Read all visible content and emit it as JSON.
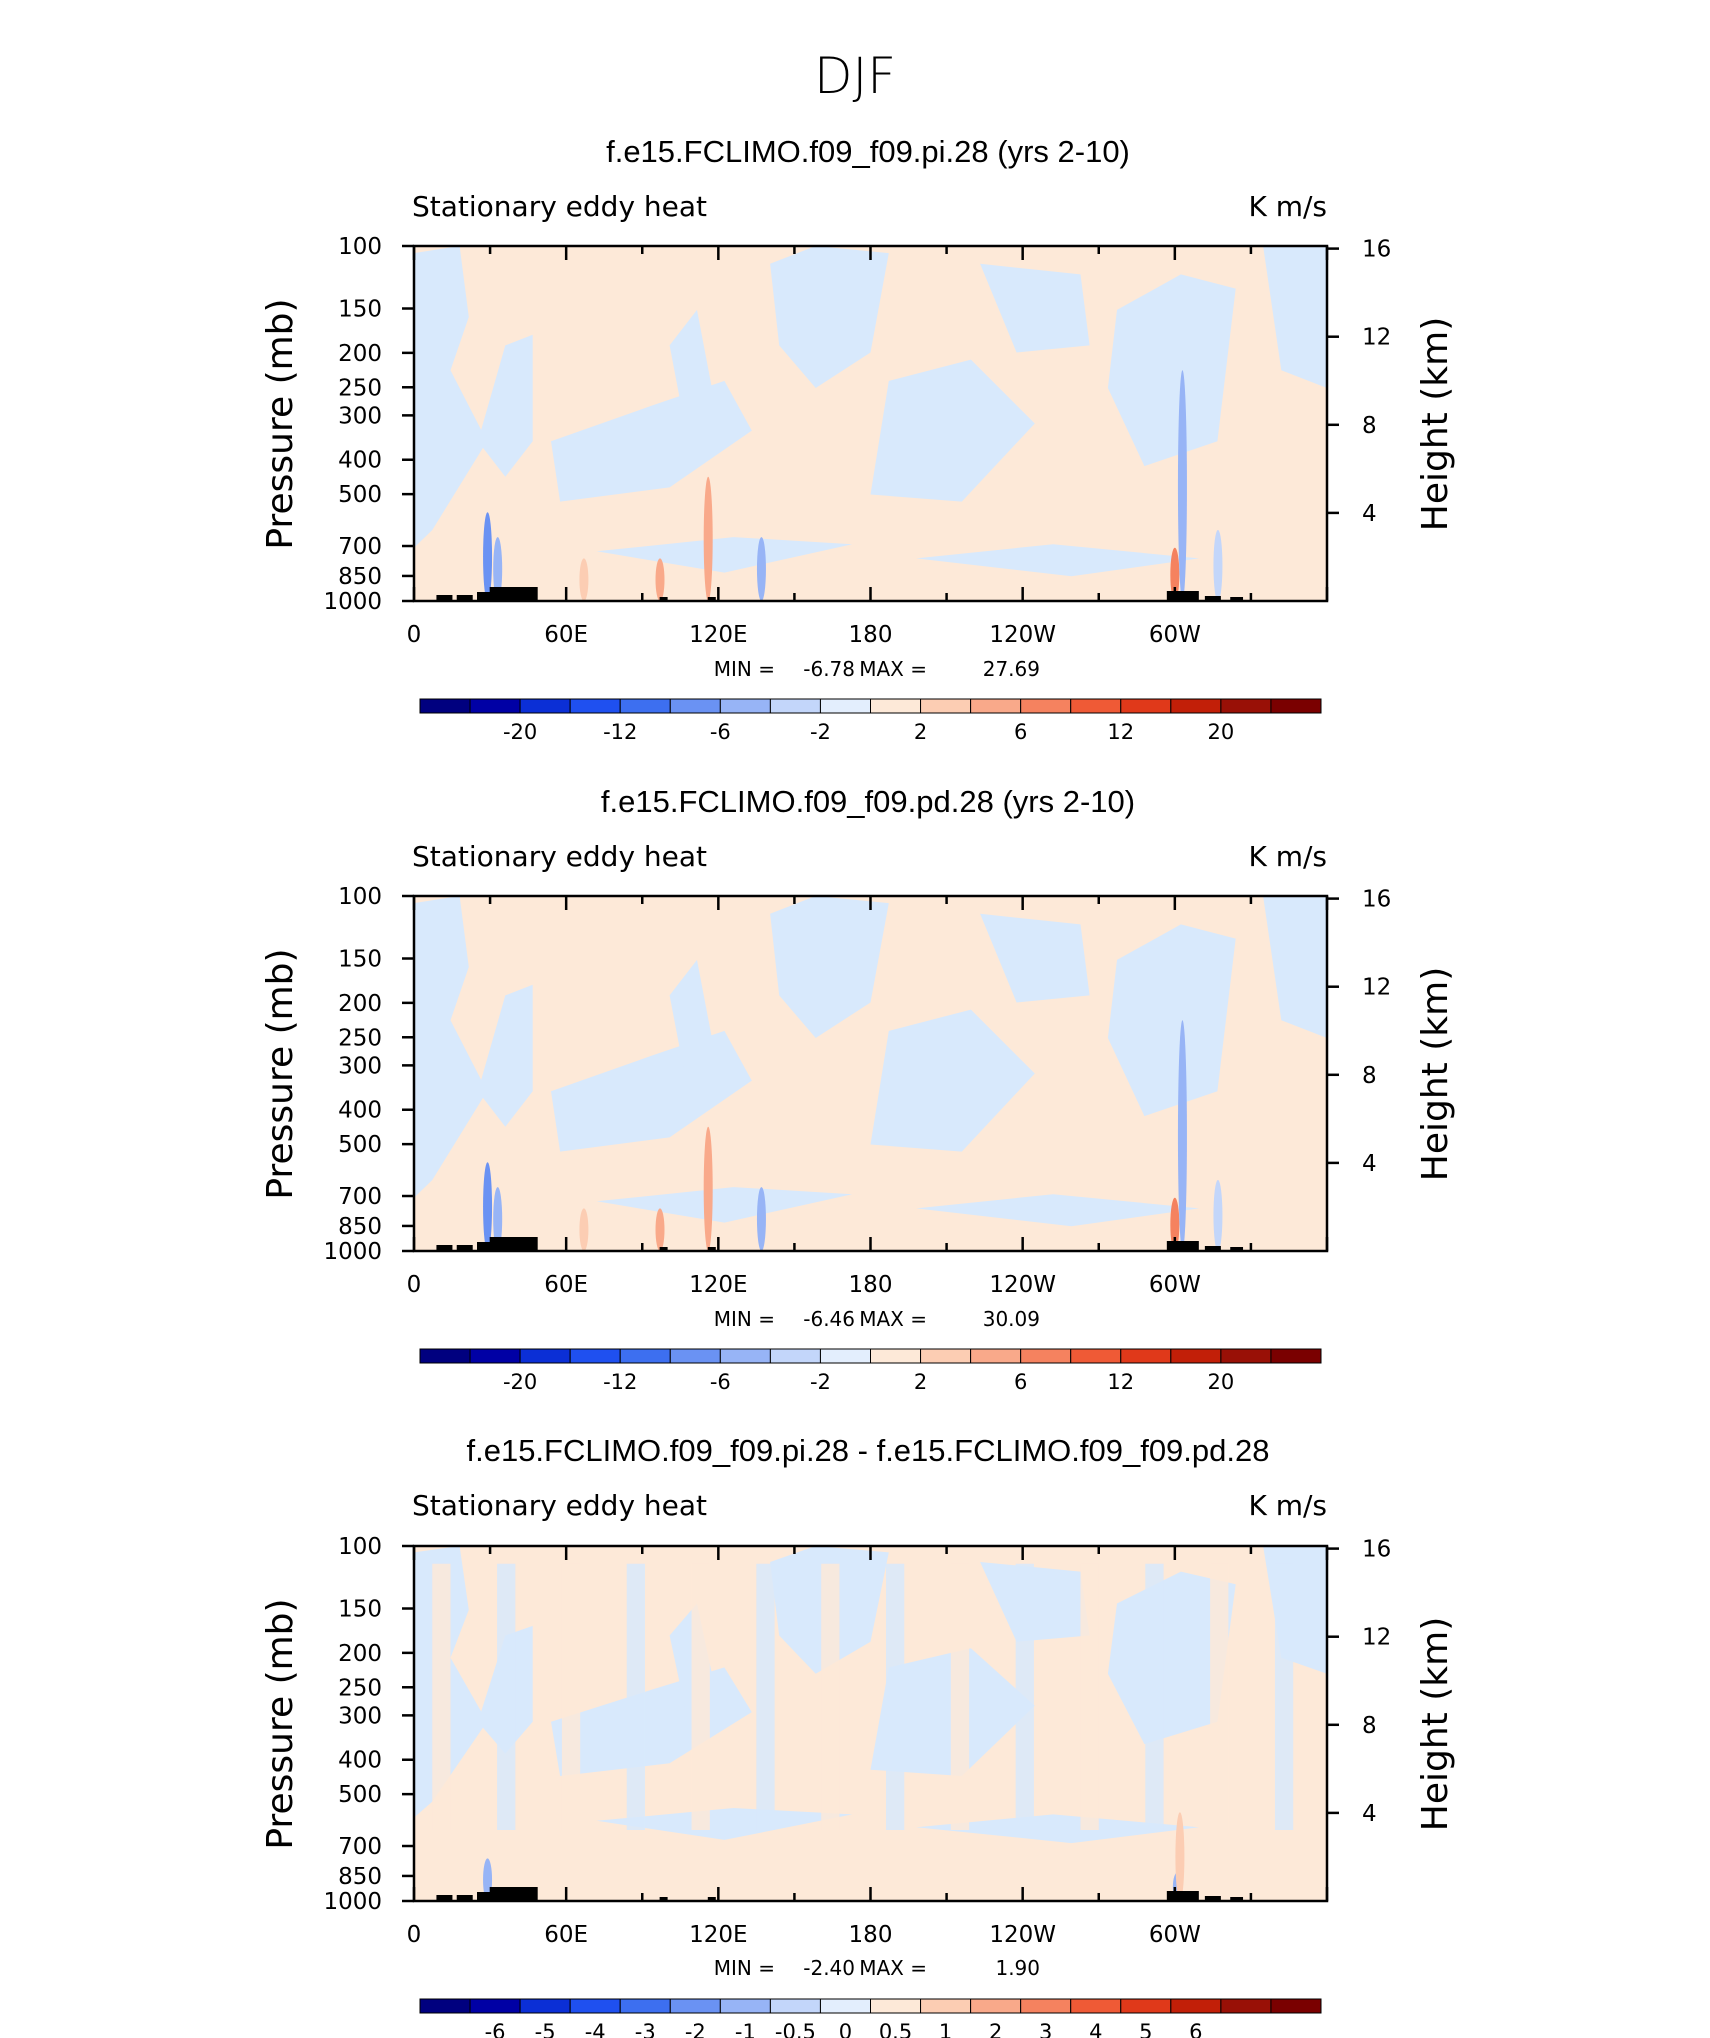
{
  "figure": {
    "title": "DJF"
  },
  "colors": {
    "scale": [
      "#00007f",
      "#0000a5",
      "#0b2fd6",
      "#1f50f0",
      "#3d6ff0",
      "#6a92f3",
      "#97b4f6",
      "#c3d6fa",
      "#e3eefd",
      "#fde9d8",
      "#fccdb3",
      "#f9a98a",
      "#f5825f",
      "#ef5a36",
      "#e0391a",
      "#c21f08",
      "#991006",
      "#7a0000"
    ],
    "pos_bg": "#fde9d8",
    "neg_bg": "#d8e9fc",
    "terrain": "#000000"
  },
  "chart_data": [
    {
      "type": "heatmap",
      "title": "f.e15.FCLIMO.f09_f09.pi.28 (yrs 2-10)",
      "left_string": "Stationary eddy heat",
      "right_string": "K m/s",
      "ylabel": "Pressure (mb)",
      "ylabel_right": "Height (km)",
      "x_ticks": [
        "0",
        "60E",
        "120E",
        "180",
        "120W",
        "60W"
      ],
      "y_ticks": [
        "100",
        "150",
        "200",
        "250",
        "300",
        "400",
        "500",
        "700",
        "850",
        "1000"
      ],
      "y_right_ticks": [
        "16",
        "12",
        "8",
        "4"
      ],
      "min_label": "MIN =",
      "min_value": "-6.78",
      "max_label": "MAX =",
      "max_value": "27.69",
      "colorbar_labels": [
        "-20",
        "-12",
        "-6",
        "-2",
        "2",
        "6",
        "12",
        "20"
      ]
    },
    {
      "type": "heatmap",
      "title": "f.e15.FCLIMO.f09_f09.pd.28 (yrs 2-10)",
      "left_string": "Stationary eddy heat",
      "right_string": "K m/s",
      "ylabel": "Pressure (mb)",
      "ylabel_right": "Height (km)",
      "x_ticks": [
        "0",
        "60E",
        "120E",
        "180",
        "120W",
        "60W"
      ],
      "y_ticks": [
        "100",
        "150",
        "200",
        "250",
        "300",
        "400",
        "500",
        "700",
        "850",
        "1000"
      ],
      "y_right_ticks": [
        "16",
        "12",
        "8",
        "4"
      ],
      "min_label": "MIN =",
      "min_value": "-6.46",
      "max_label": "MAX =",
      "max_value": "30.09",
      "colorbar_labels": [
        "-20",
        "-12",
        "-6",
        "-2",
        "2",
        "6",
        "12",
        "20"
      ]
    },
    {
      "type": "heatmap",
      "title": "f.e15.FCLIMO.f09_f09.pi.28 - f.e15.FCLIMO.f09_f09.pd.28",
      "left_string": "Stationary eddy heat",
      "right_string": "K m/s",
      "ylabel": "Pressure (mb)",
      "ylabel_right": "Height (km)",
      "x_ticks": [
        "0",
        "60E",
        "120E",
        "180",
        "120W",
        "60W"
      ],
      "y_ticks": [
        "100",
        "150",
        "200",
        "250",
        "300",
        "400",
        "500",
        "700",
        "850",
        "1000"
      ],
      "y_right_ticks": [
        "16",
        "12",
        "8",
        "4"
      ],
      "min_label": "MIN =",
      "min_value": "-2.40",
      "max_label": "MAX =",
      "max_value": "1.90",
      "colorbar_labels": [
        "-6",
        "-5",
        "-4",
        "-3",
        "-2",
        "-1",
        "-0.5",
        "0",
        "0.5",
        "1",
        "2",
        "3",
        "4",
        "5",
        "6"
      ]
    }
  ]
}
